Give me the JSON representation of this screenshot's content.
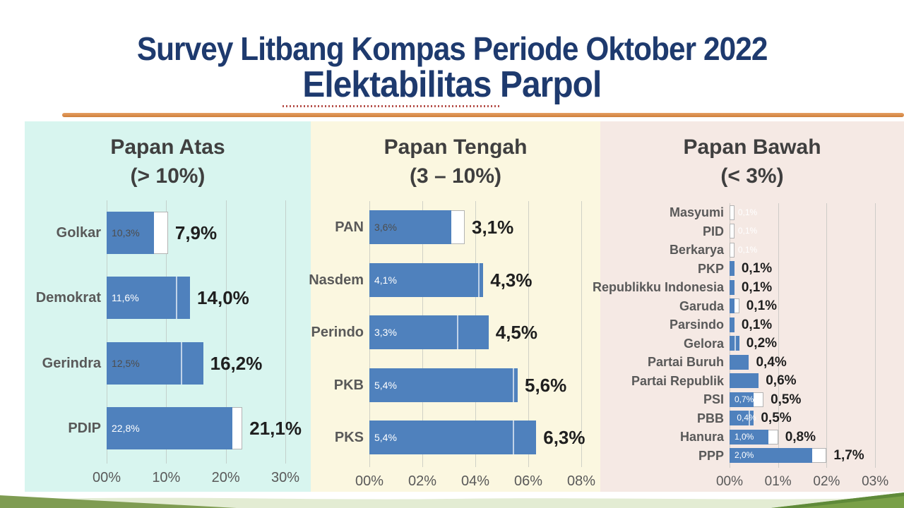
{
  "slide": {
    "title": "Survey Litbang Kompas Periode Oktober 2022",
    "subtitle": "Elektabilitas Parpol",
    "colors": {
      "title_navy": "#1e3a6e",
      "orange_rule": "#d98c45",
      "dotted_rule_red": "#b5504a",
      "bar_blue": "#4f81bd",
      "outline_bar_fill": "#ffffff",
      "outline_bar_border": "#b3b3b3",
      "panel_atas_bg": "#d8f5ef",
      "panel_tengah_bg": "#fbf7e0",
      "panel_bawah_bg": "#f5e9e4",
      "wave_green_dark": "#7f9c52",
      "wave_green_light": "#e3ecd3"
    }
  },
  "chart_data": [
    {
      "type": "bar",
      "orientation": "horizontal",
      "title": "Papan Atas",
      "subtitle": "(> 10%)",
      "xlabel": "",
      "ylabel": "",
      "xlim": [
        0,
        30
      ],
      "x_ticks": [
        "00%",
        "10%",
        "20%",
        "30%"
      ],
      "x_tick_values": [
        0,
        10,
        20,
        30
      ],
      "grid": true,
      "series_note": "solid blue bar = current survey value; white outlined bar = previous survey value",
      "rows": [
        {
          "party": "Golkar",
          "current": 7.9,
          "previous": 10.3,
          "current_label": "7,9%",
          "previous_label": "10,3%",
          "previous_label_color": "dark",
          "previous_label_pos": "inside"
        },
        {
          "party": "Demokrat",
          "current": 14.0,
          "previous": 11.6,
          "current_label": "14,0%",
          "previous_label": "11,6%",
          "previous_label_color": "white",
          "previous_label_pos": "inside"
        },
        {
          "party": "Gerindra",
          "current": 16.2,
          "previous": 12.5,
          "current_label": "16,2%",
          "previous_label": "12,5%",
          "previous_label_color": "dark",
          "previous_label_pos": "inside"
        },
        {
          "party": "PDIP",
          "current": 21.1,
          "previous": 22.8,
          "current_label": "21,1%",
          "previous_label": "22,8%",
          "previous_label_color": "white",
          "previous_label_pos": "inside"
        }
      ]
    },
    {
      "type": "bar",
      "orientation": "horizontal",
      "title": "Papan Tengah",
      "subtitle": "(3 – 10%)",
      "xlabel": "",
      "ylabel": "",
      "xlim": [
        0,
        8
      ],
      "x_ticks": [
        "00%",
        "02%",
        "04%",
        "06%",
        "08%"
      ],
      "x_tick_values": [
        0,
        2,
        4,
        6,
        8
      ],
      "grid": true,
      "series_note": "solid blue bar = current survey value; white outlined bar = previous survey value",
      "rows": [
        {
          "party": "PAN",
          "current": 3.1,
          "previous": 3.6,
          "current_label": "3,1%",
          "previous_label": "3,6%",
          "previous_label_color": "dark",
          "previous_label_pos": "inside"
        },
        {
          "party": "Nasdem",
          "current": 4.3,
          "previous": 4.1,
          "current_label": "4,3%",
          "previous_label": "4,1%",
          "previous_label_color": "white",
          "previous_label_pos": "inside"
        },
        {
          "party": "Perindo",
          "current": 4.5,
          "previous": 3.3,
          "current_label": "4,5%",
          "previous_label": "3,3%",
          "previous_label_color": "white",
          "previous_label_pos": "inside"
        },
        {
          "party": "PKB",
          "current": 5.6,
          "previous": 5.4,
          "current_label": "5,6%",
          "previous_label": "5,4%",
          "previous_label_color": "white",
          "previous_label_pos": "inside"
        },
        {
          "party": "PKS",
          "current": 6.3,
          "previous": 5.4,
          "current_label": "6,3%",
          "previous_label": "5,4%",
          "previous_label_color": "white",
          "previous_label_pos": "inside"
        }
      ]
    },
    {
      "type": "bar",
      "orientation": "horizontal",
      "title": "Papan Bawah",
      "subtitle": "(< 3%)",
      "xlabel": "",
      "ylabel": "",
      "xlim": [
        0,
        3
      ],
      "x_ticks": [
        "00%",
        "01%",
        "02%",
        "03%"
      ],
      "x_tick_values": [
        0,
        1,
        2,
        3
      ],
      "grid": true,
      "series_note": "solid blue bar = current survey value; white outlined bar = previous survey value",
      "rows": [
        {
          "party": "Masyumi",
          "current": null,
          "previous": 0.1,
          "current_label": null,
          "previous_label": "0,1%",
          "previous_label_color": "white",
          "previous_label_pos": "outside"
        },
        {
          "party": "PID",
          "current": null,
          "previous": 0.1,
          "current_label": null,
          "previous_label": "0,1%",
          "previous_label_color": "white",
          "previous_label_pos": "outside"
        },
        {
          "party": "Berkarya",
          "current": null,
          "previous": 0.1,
          "current_label": null,
          "previous_label": "0,1%",
          "previous_label_color": "white",
          "previous_label_pos": "outside"
        },
        {
          "party": "PKP",
          "current": 0.1,
          "previous": null,
          "current_label": "0,1%",
          "previous_label": null,
          "previous_label_color": null,
          "previous_label_pos": null
        },
        {
          "party": "Republikku Indonesia",
          "current": 0.1,
          "previous": null,
          "current_label": "0,1%",
          "previous_label": null,
          "previous_label_color": null,
          "previous_label_pos": null
        },
        {
          "party": "Garuda",
          "current": 0.1,
          "previous": 0.2,
          "current_label": "0,1%",
          "previous_label": null,
          "previous_label_color": null,
          "previous_label_pos": null
        },
        {
          "party": "Parsindo",
          "current": 0.1,
          "previous": null,
          "current_label": "0,1%",
          "previous_label": null,
          "previous_label_color": null,
          "previous_label_pos": null
        },
        {
          "party": "Gelora",
          "current": 0.2,
          "previous": 0.1,
          "current_label": "0,2%",
          "previous_label": null,
          "previous_label_color": null,
          "previous_label_pos": null
        },
        {
          "party": "Partai Buruh",
          "current": 0.4,
          "previous": null,
          "current_label": "0,4%",
          "previous_label": null,
          "previous_label_color": null,
          "previous_label_pos": null
        },
        {
          "party": "Partai Republik",
          "current": 0.6,
          "previous": null,
          "current_label": "0,6%",
          "previous_label": null,
          "previous_label_color": null,
          "previous_label_pos": null
        },
        {
          "party": "PSI",
          "current": 0.5,
          "previous": 0.7,
          "current_label": "0,5%",
          "previous_label": "0,7%",
          "previous_label_color": "white",
          "previous_label_pos": "inside"
        },
        {
          "party": "PBB",
          "current": 0.5,
          "previous": 0.4,
          "current_label": "0,5%",
          "previous_label": "0,4%",
          "previous_label_color": "white",
          "previous_label_pos": "edge"
        },
        {
          "party": "Hanura",
          "current": 0.8,
          "previous": 1.0,
          "current_label": "0,8%",
          "previous_label": "1,0%",
          "previous_label_color": "white",
          "previous_label_pos": "inside"
        },
        {
          "party": "PPP",
          "current": 1.7,
          "previous": 2.0,
          "current_label": "1,7%",
          "previous_label": "2,0%",
          "previous_label_color": "white",
          "previous_label_pos": "inside"
        }
      ]
    }
  ]
}
